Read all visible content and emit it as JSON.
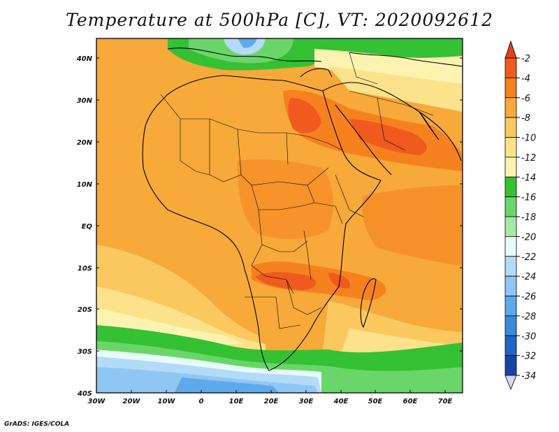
{
  "title": "Temperature at 500hPa [C], VT: 2020092612",
  "footer": "GrADS: IGES/COLA",
  "axes": {
    "lat_labels": [
      "40N",
      "30N",
      "20N",
      "10N",
      "EQ",
      "10S",
      "20S",
      "30S",
      "40S"
    ],
    "lon_labels": [
      "30W",
      "20W",
      "10W",
      "0",
      "10E",
      "20E",
      "30E",
      "40E",
      "50E",
      "60E",
      "70E"
    ]
  },
  "colorbar": {
    "labels": [
      "-2",
      "-4",
      "-6",
      "-8",
      "-10",
      "-12",
      "-14",
      "-16",
      "-18",
      "-20",
      "-22",
      "-24",
      "-26",
      "-28",
      "-30",
      "-32",
      "-34"
    ],
    "colors": [
      "#f05a1e",
      "#f5821e",
      "#f7a93a",
      "#fbc860",
      "#fde28c",
      "#fdf3b0",
      "#34c134",
      "#6ad66a",
      "#a3eba3",
      "#e8fbf8",
      "#b3dbf7",
      "#8fc6f2",
      "#5ea9ea",
      "#3b89dd",
      "#2066c8",
      "#1645a6",
      "#0b1e7a"
    ],
    "top_arrow_color": "#e0401a",
    "bottom_arrow_color": "#d8d8f5"
  }
}
